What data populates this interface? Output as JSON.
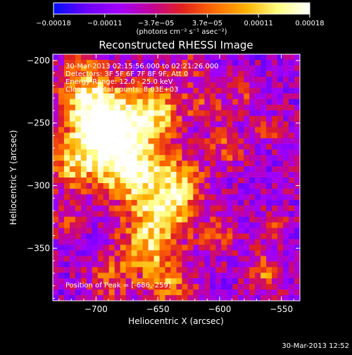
{
  "chart_data": {
    "type": "heatmap",
    "title": "Reconstructed RHESSI Image",
    "xlabel": "Heliocentric X (arcsec)",
    "ylabel": "Heliocentric Y (arcsec)",
    "xlim": [
      -735,
      -535
    ],
    "ylim": [
      -392,
      -195
    ],
    "x_ticks": [
      -700,
      -650,
      -600,
      -550
    ],
    "y_ticks": [
      -200,
      -250,
      -300,
      -350
    ],
    "x_tick_labels": [
      "−700",
      "−650",
      "−600",
      "−550"
    ],
    "y_tick_labels": [
      "−200",
      "−250",
      "−300",
      "−350"
    ],
    "colorbar": {
      "range": [
        -0.00018,
        0.00018
      ],
      "tick_labels": [
        "−0.00018",
        "−0.00011",
        "−3.7e−05",
        "3.7e−05",
        "0.00011",
        "0.00018"
      ],
      "unit_label": "(photons cm⁻² s⁻¹ asec⁻²)",
      "colors": [
        "#0010ff",
        "#6a00ff",
        "#a000ff",
        "#c000a0",
        "#e02020",
        "#ff6a00",
        "#ffb000",
        "#ffff80",
        "#ffffff"
      ]
    },
    "annotations": [
      "30-Mar-2013 02:15:56.000 to 02:21:26.000",
      "Detectors: 3F 5F 6F 7F 8F 9F, Att 0",
      "Energy Range: 12.0 - 25.0 keV",
      "Clean     Total counts: 8.03E+03"
    ],
    "peak_label": "Position of Peak = [-686,-259]",
    "peak": [
      -686,
      -259
    ],
    "grid": false
  },
  "footer": {
    "timestamp": "30-Mar-2013 12:52"
  }
}
